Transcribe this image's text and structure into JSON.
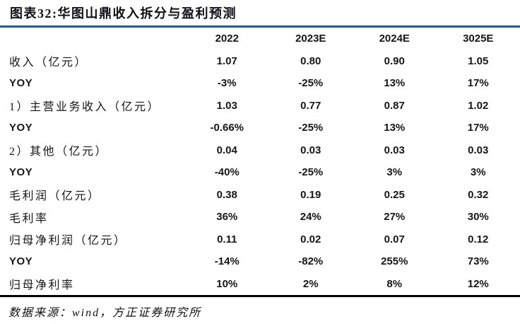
{
  "title": "图表32:华图山鼎收入拆分与盈利预测",
  "table": {
    "columns": [
      "",
      "2022",
      "2023E",
      "2024E",
      "3025E"
    ],
    "rows": [
      {
        "label": "收入（亿元）",
        "values": [
          "1.07",
          "0.80",
          "0.90",
          "1.05"
        ]
      },
      {
        "label": "YOY",
        "values": [
          "-3%",
          "-25%",
          "13%",
          "17%"
        ]
      },
      {
        "label": "1）主营业务收入（亿元）",
        "values": [
          "1.03",
          "0.77",
          "0.87",
          "1.02"
        ]
      },
      {
        "label": "YOY",
        "values": [
          "-0.66%",
          "-25%",
          "13%",
          "17%"
        ]
      },
      {
        "label": "2）其他（亿元）",
        "values": [
          "0.04",
          "0.03",
          "0.03",
          "0.03"
        ]
      },
      {
        "label": "YOY",
        "values": [
          "-40%",
          "-25%",
          "3%",
          "3%"
        ]
      },
      {
        "label": "毛利润（亿元）",
        "values": [
          "0.38",
          "0.19",
          "0.25",
          "0.32"
        ]
      },
      {
        "label": "毛利率",
        "values": [
          "36%",
          "24%",
          "27%",
          "30%"
        ]
      },
      {
        "label": "归母净利润（亿元）",
        "values": [
          "0.11",
          "0.02",
          "0.07",
          "0.12"
        ]
      },
      {
        "label": "YOY",
        "values": [
          "-14%",
          "-82%",
          "255%",
          "73%"
        ]
      },
      {
        "label": "归母净利率",
        "values": [
          "10%",
          "2%",
          "8%",
          "12%"
        ]
      }
    ]
  },
  "footer": "数据来源：wind，方正证券研究所",
  "colors": {
    "accent_line": "#27598e",
    "bottom_line": "#000000",
    "text": "#161616"
  }
}
